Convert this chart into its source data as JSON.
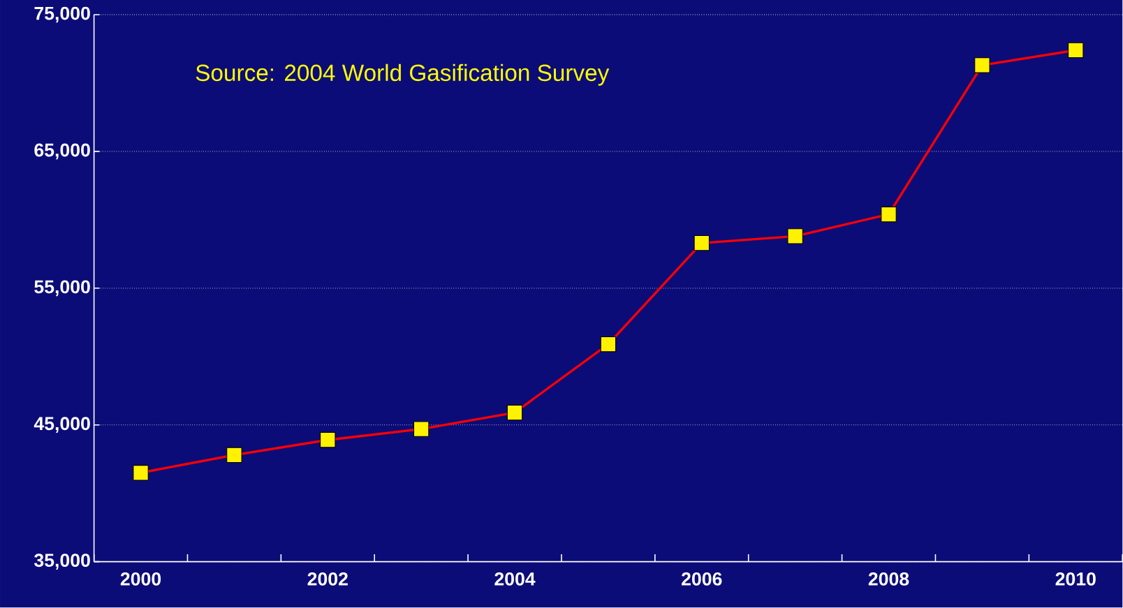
{
  "chart_data": {
    "type": "line",
    "categories": [
      "2000",
      null,
      "2002",
      null,
      "2004",
      null,
      "2006",
      null,
      "2008",
      null,
      "2010"
    ],
    "series": [
      {
        "color": "#ff0000",
        "values": [
          41500,
          42800,
          43900,
          44700,
          45900,
          50900,
          58300,
          58800,
          60400,
          71300,
          72400
        ]
      }
    ],
    "ylim": [
      35000,
      75000
    ],
    "yticks": [
      {
        "value": 35000,
        "label": "35,000"
      },
      {
        "value": 45000,
        "label": "45,000"
      },
      {
        "value": 55000,
        "label": "55,000"
      },
      {
        "value": 65000,
        "label": "65,000"
      },
      {
        "value": 75000,
        "label": "75,000"
      }
    ],
    "grid": "y",
    "marker": "square",
    "line_style": "solid",
    "annotations": [
      "Source:  2004 World Gasification Survey"
    ]
  }
}
